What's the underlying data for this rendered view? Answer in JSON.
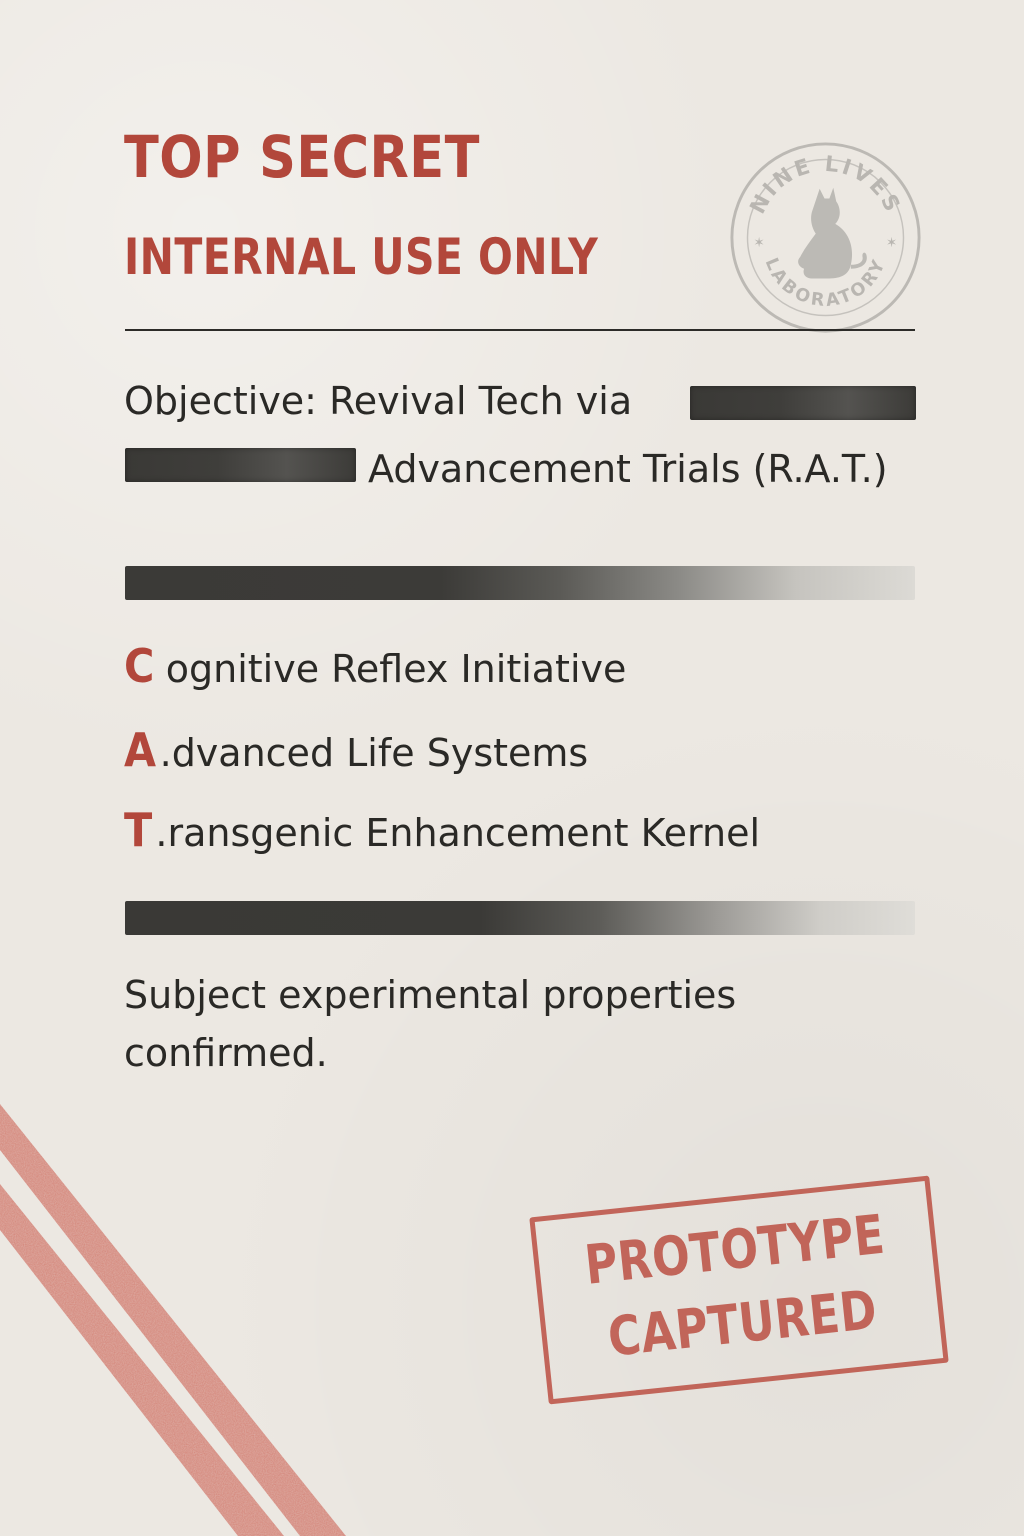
{
  "header": {
    "title": "TOP SECRET",
    "subtitle": "INTERNAL USE ONLY"
  },
  "seal": {
    "text_top": "NINE LIVES",
    "text_bottom": "LABORATORY",
    "icon": "cat-icon",
    "color": "#9c9a95"
  },
  "objective": {
    "line1": "Objective: Revival Tech via",
    "line2": "Advancement Trials (R.A.T.)"
  },
  "acronym": [
    {
      "letter": "C",
      "text": "ognitive Reflex Initiative"
    },
    {
      "letter": "A",
      "text": ".dvanced Life Systems"
    },
    {
      "letter": "T",
      "text": ".ransgenic Enhancement Kernel"
    }
  ],
  "conclusion": "Subject experimental properties confirmed.",
  "stamp": {
    "line1": "PROTOTYPE",
    "line2": "CAPTURED"
  },
  "colors": {
    "accent_red": "#b2473b",
    "stamp_red": "#bd5448",
    "ink": "#2a2926",
    "paper": "#ece8e2",
    "redaction": "#3b3a37"
  }
}
